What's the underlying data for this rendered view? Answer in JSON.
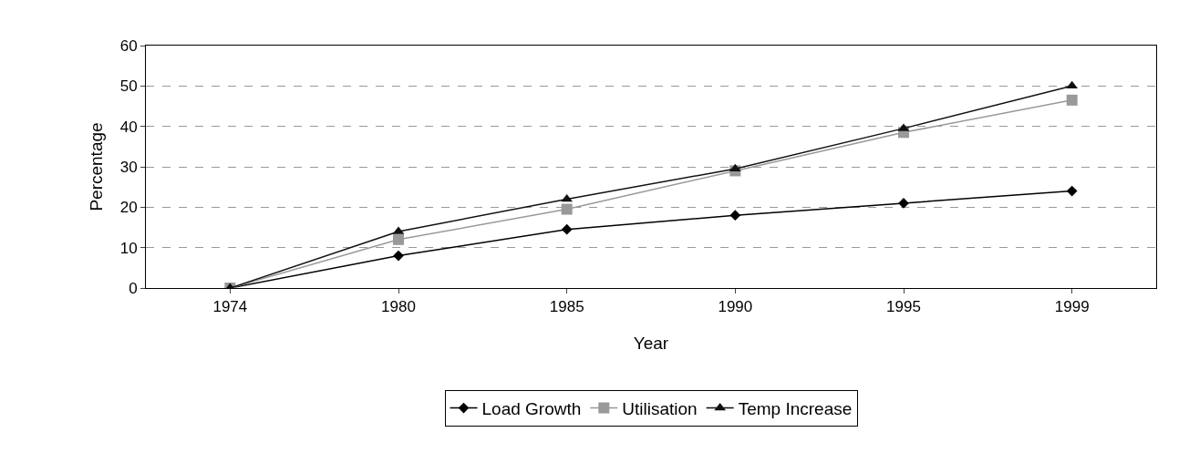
{
  "chart_data": {
    "type": "line",
    "xlabel": "Year",
    "ylabel": "Percentage",
    "categories": [
      "1974",
      "1980",
      "1985",
      "1990",
      "1995",
      "1999"
    ],
    "series": [
      {
        "name": "Load Growth",
        "color": "#000000",
        "marker": "diamond",
        "values": [
          0,
          8,
          14.5,
          18,
          21,
          24
        ]
      },
      {
        "name": "Utilisation",
        "color": "#999999",
        "marker": "square",
        "values": [
          0,
          12,
          19.5,
          29,
          38.5,
          46.5
        ]
      },
      {
        "name": "Temp Increase",
        "color": "#111111",
        "marker": "triangle",
        "values": [
          0,
          14,
          22,
          29.5,
          39.5,
          50
        ]
      }
    ],
    "ylim": [
      0,
      60
    ],
    "yticks": [
      0,
      10,
      20,
      30,
      40,
      50,
      60
    ],
    "grid": "y",
    "legend": "bottom",
    "line_style": "solid"
  }
}
